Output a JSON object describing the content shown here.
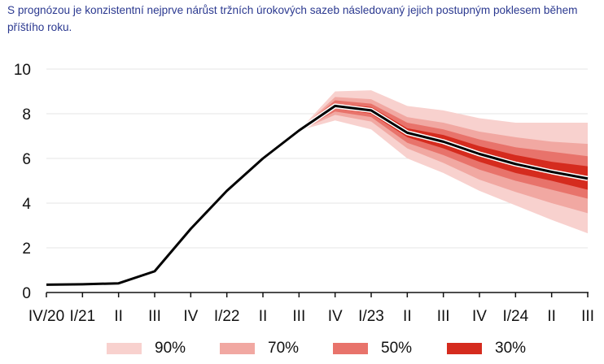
{
  "caption": "S prognózou je konzistentní nejprve nárůst tržních úrokových sazeb následovaný jejich postupným poklesem během příštího roku.",
  "chart_data": {
    "type": "line",
    "categories": [
      "IV/20",
      "I/21",
      "II",
      "III",
      "IV",
      "I/22",
      "II",
      "III",
      "IV",
      "I/23",
      "II",
      "III",
      "IV",
      "I/24",
      "II",
      "III"
    ],
    "ylim": [
      0,
      10
    ],
    "yticks": [
      0,
      2,
      4,
      6,
      8,
      10
    ],
    "grid": true,
    "legend_position": "bottom",
    "series": [
      {
        "values": [
          0.35,
          0.37,
          0.41,
          0.95,
          2.85,
          4.55,
          6.0,
          7.25,
          8.35,
          8.15,
          7.15,
          6.75,
          6.2,
          5.75,
          5.4,
          5.1
        ]
      }
    ],
    "fan_start_index": 7,
    "bands": [
      {
        "name": "90%",
        "color": "#f8d1ce",
        "lower": [
          7.25,
          7.7,
          7.3,
          6.0,
          5.35,
          4.55,
          3.9,
          3.25,
          2.65
        ],
        "upper": [
          7.25,
          9.0,
          9.05,
          8.35,
          8.15,
          7.8,
          7.6,
          7.6,
          7.6
        ]
      },
      {
        "name": "70%",
        "color": "#f1a8a2",
        "lower": [
          7.25,
          7.95,
          7.65,
          6.45,
          5.8,
          5.05,
          4.5,
          4.0,
          3.55
        ],
        "upper": [
          7.25,
          8.75,
          8.65,
          7.85,
          7.6,
          7.2,
          6.95,
          6.75,
          6.65
        ]
      },
      {
        "name": "50%",
        "color": "#e8736b",
        "lower": [
          7.25,
          8.1,
          7.85,
          6.7,
          6.15,
          5.5,
          5.0,
          4.6,
          4.2
        ],
        "upper": [
          7.25,
          8.6,
          8.45,
          7.6,
          7.3,
          6.85,
          6.5,
          6.3,
          6.1
        ]
      },
      {
        "name": "30%",
        "color": "#d52b1e",
        "lower": [
          7.25,
          8.25,
          8.0,
          6.95,
          6.45,
          5.85,
          5.35,
          5.0,
          4.6
        ],
        "upper": [
          7.25,
          8.45,
          8.3,
          7.35,
          7.05,
          6.55,
          6.15,
          5.85,
          5.65
        ]
      }
    ],
    "legend": [
      "90%",
      "70%",
      "50%",
      "30%"
    ]
  }
}
